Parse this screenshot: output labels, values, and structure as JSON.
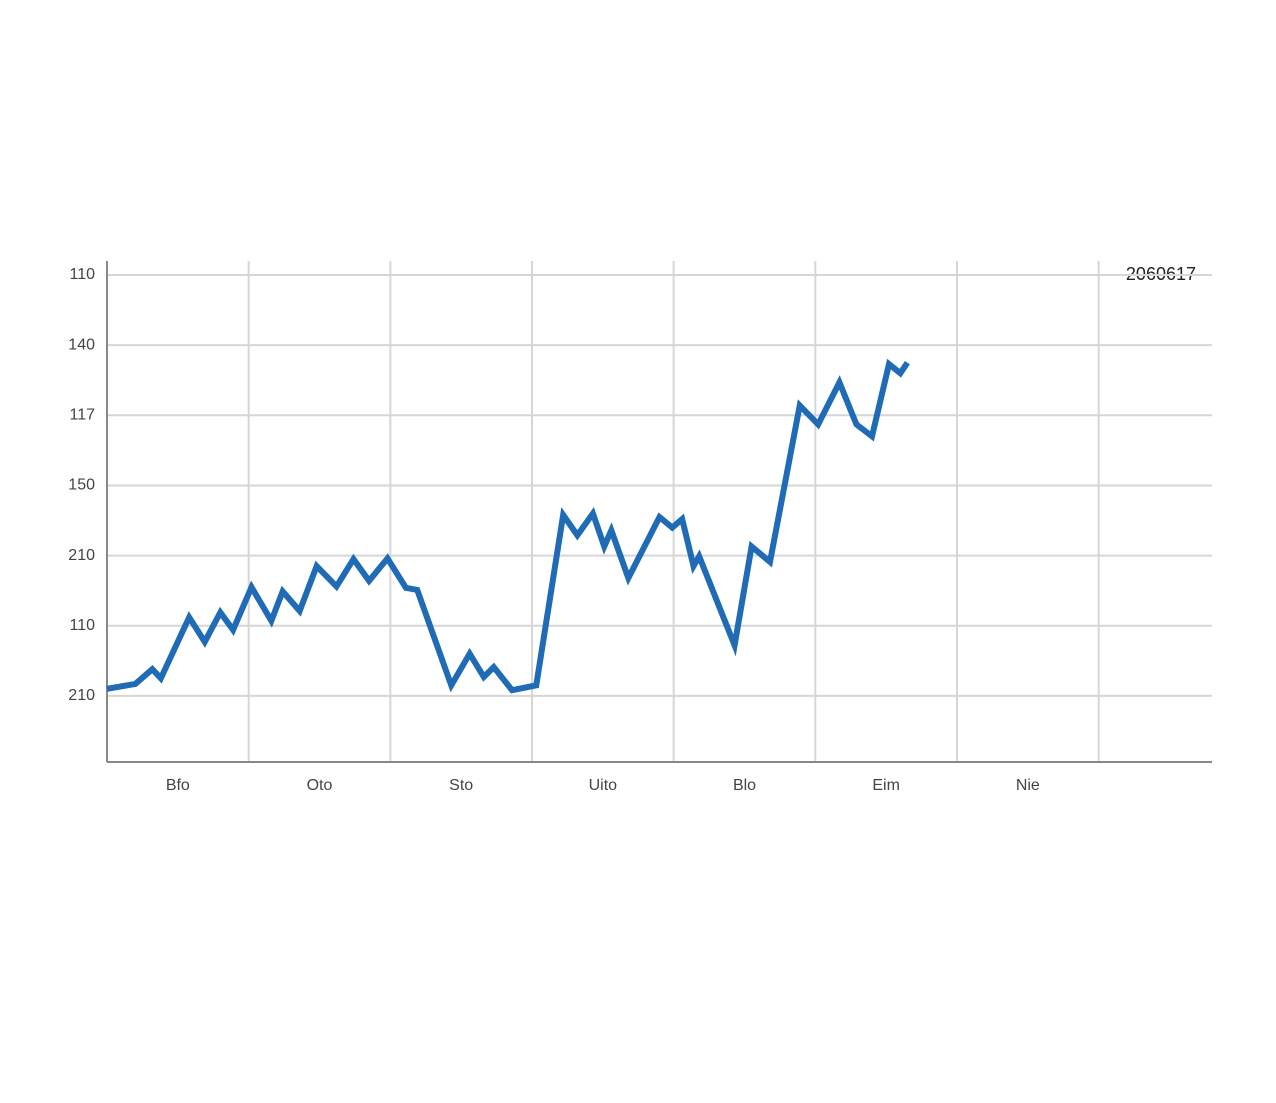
{
  "chart_data": {
    "type": "line",
    "annotation": "2060617",
    "xlim": [
      0,
      7.8
    ],
    "xticks": [
      {
        "value": 0.5,
        "label": "Bfo"
      },
      {
        "value": 1.5,
        "label": "Oto"
      },
      {
        "value": 2.5,
        "label": "Sto"
      },
      {
        "value": 3.5,
        "label": "Uito"
      },
      {
        "value": 4.5,
        "label": "Blo"
      },
      {
        "value": 5.5,
        "label": "Eim"
      },
      {
        "value": 6.5,
        "label": "Nie"
      }
    ],
    "ylim": [
      0,
      7.2
    ],
    "yticks": [
      {
        "value": 1,
        "label": "210"
      },
      {
        "value": 2,
        "label": "110"
      },
      {
        "value": 3,
        "label": "210"
      },
      {
        "value": 4,
        "label": "150"
      },
      {
        "value": 5,
        "label": "117"
      },
      {
        "value": 6,
        "label": "140"
      },
      {
        "value": 7,
        "label": "110"
      }
    ],
    "grid": true,
    "series": [
      {
        "color": "#1f6bb5",
        "x": [
          0,
          0.2,
          0.32,
          0.38,
          0.58,
          0.69,
          0.8,
          0.89,
          1.02,
          1.16,
          1.24,
          1.36,
          1.48,
          1.62,
          1.74,
          1.85,
          1.98,
          2.11,
          2.19,
          2.43,
          2.56,
          2.66,
          2.73,
          2.86,
          3.03,
          3.22,
          3.32,
          3.43,
          3.51,
          3.56,
          3.68,
          3.9,
          3.99,
          4.06,
          4.14,
          4.18,
          4.43,
          4.55,
          4.68,
          4.89,
          5.02,
          5.17,
          5.29,
          5.4,
          5.52,
          5.6,
          5.65
        ],
        "values": [
          1.1,
          1.17,
          1.38,
          1.25,
          2.12,
          1.77,
          2.19,
          1.94,
          2.55,
          2.07,
          2.49,
          2.21,
          2.85,
          2.56,
          2.95,
          2.64,
          2.96,
          2.54,
          2.51,
          1.15,
          1.6,
          1.27,
          1.41,
          1.08,
          1.15,
          3.58,
          3.29,
          3.6,
          3.13,
          3.36,
          2.68,
          3.55,
          3.4,
          3.52,
          2.85,
          2.99,
          1.72,
          3.13,
          2.91,
          5.14,
          4.87,
          5.47,
          4.87,
          4.7,
          5.73,
          5.6,
          5.75
        ]
      }
    ]
  }
}
